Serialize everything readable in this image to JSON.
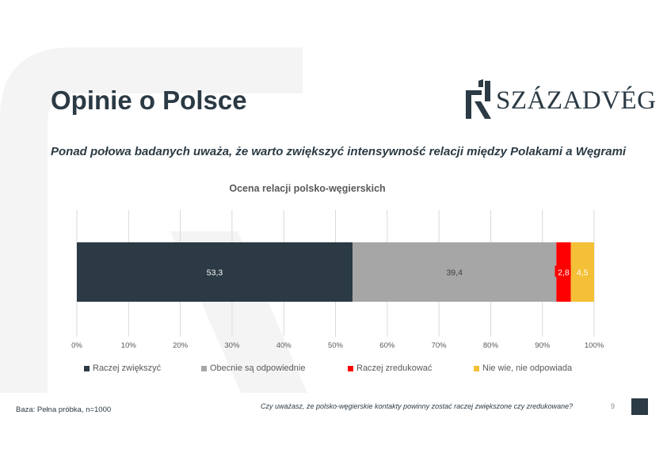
{
  "header": {
    "title": "Opinie o Polsce",
    "subtitle": "Ponad połowa badanych uważa, że warto zwiększyć intensywność relacji między Polakami a Węgrami"
  },
  "logo": {
    "text": "SZÁZADVÉG",
    "icon": "szazadveg-logo-icon"
  },
  "colors": {
    "dark": "#2b3a44",
    "gray": "#a6a6a6",
    "red": "#ff0000",
    "yellow": "#f4c037"
  },
  "chart_data": {
    "type": "bar",
    "orientation": "horizontal",
    "stacked": true,
    "percent_stacked": true,
    "title": "Ocena relacji polsko-węgierskich",
    "x_ticks": [
      "0%",
      "10%",
      "20%",
      "30%",
      "40%",
      "50%",
      "60%",
      "70%",
      "80%",
      "90%",
      "100%"
    ],
    "xlim": [
      0,
      100
    ],
    "grid": true,
    "legend_position": "bottom",
    "series": [
      {
        "name": "Raczej zwiększyć",
        "value": 53.3,
        "label": "53,3",
        "color": "#2b3a44"
      },
      {
        "name": "Obecnie są odpowiednie",
        "value": 39.4,
        "label": "39,4",
        "color": "#a6a6a6"
      },
      {
        "name": "Raczej zredukować",
        "value": 2.8,
        "label": "2,8",
        "color": "#ff0000"
      },
      {
        "name": "Nie wie, nie odpowiada",
        "value": 4.5,
        "label": "4,5",
        "color": "#f4c037"
      }
    ]
  },
  "footer": {
    "base": "Baza: Pełna próbka, n=1000",
    "question": "Czy uważasz, że polsko-węgierskie kontakty powinny zostać raczej zwiększone czy zredukowane?",
    "page": "9"
  }
}
